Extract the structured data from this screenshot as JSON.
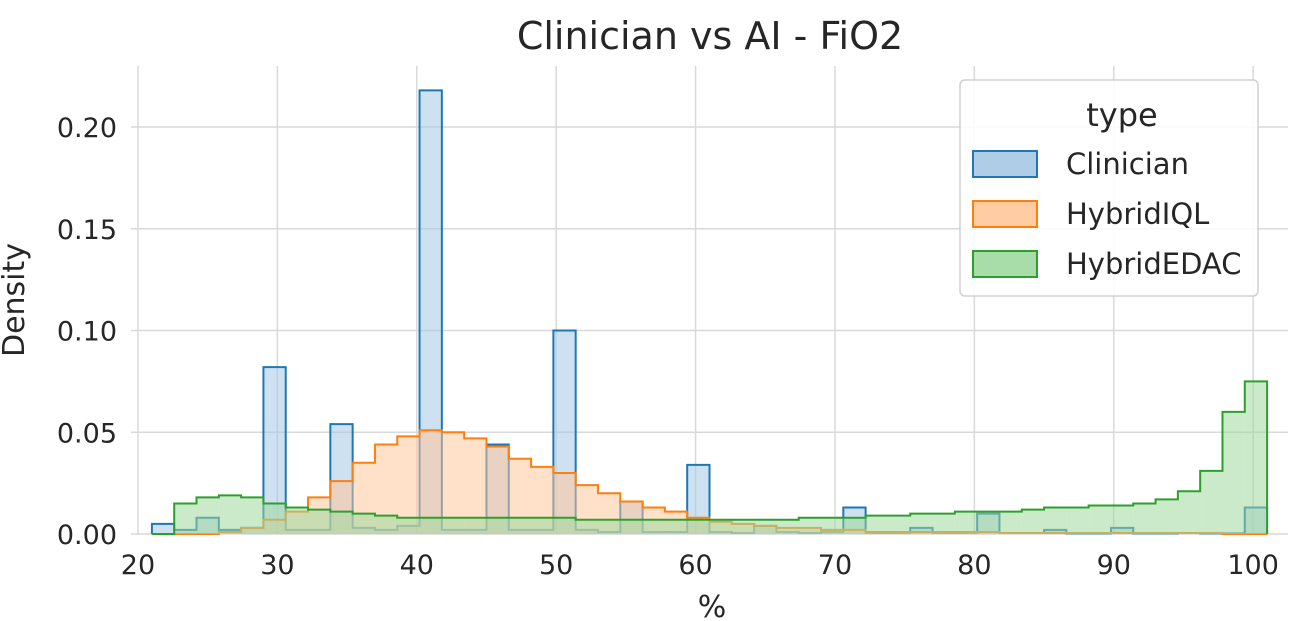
{
  "chart_data": {
    "type": "histogram",
    "title": "Clinician vs AI - FiO2",
    "xlabel": "%",
    "ylabel": "Density",
    "xlim": [
      19.5,
      102.5
    ],
    "ylim": [
      0,
      0.23
    ],
    "x_ticks": [
      20,
      30,
      40,
      50,
      60,
      70,
      80,
      90,
      100
    ],
    "x_tick_labels": [
      "20",
      "30",
      "40",
      "50",
      "60",
      "70",
      "80",
      "90",
      "100"
    ],
    "y_ticks": [
      0.0,
      0.05,
      0.1,
      0.15,
      0.2
    ],
    "y_tick_labels": [
      "0.00",
      "0.05",
      "0.10",
      "0.15",
      "0.20"
    ],
    "grid": true,
    "legend": {
      "title": "type",
      "position": "top-right"
    },
    "bin_edges": [
      21.0,
      22.6,
      24.2,
      25.8,
      27.4,
      29.0,
      30.6,
      32.2,
      33.8,
      35.4,
      37.0,
      38.6,
      40.2,
      41.8,
      43.4,
      45.0,
      46.6,
      48.2,
      49.8,
      51.4,
      53.0,
      54.6,
      56.2,
      57.8,
      59.4,
      61.0,
      62.6,
      64.2,
      65.8,
      67.4,
      69.0,
      70.6,
      72.2,
      73.8,
      75.4,
      77.0,
      78.6,
      80.2,
      81.8,
      83.4,
      85.0,
      86.6,
      88.2,
      89.8,
      91.4,
      93.0,
      94.6,
      96.2,
      97.8,
      99.4,
      101.0
    ],
    "series": [
      {
        "name": "Clinician",
        "color": "#1f77b4",
        "fill": "#a6c8e3",
        "values": [
          0.005,
          0.002,
          0.008,
          0.002,
          0.003,
          0.082,
          0.002,
          0.002,
          0.054,
          0.003,
          0.002,
          0.004,
          0.218,
          0.002,
          0.002,
          0.044,
          0.002,
          0.002,
          0.1,
          0.002,
          0.001,
          0.016,
          0.001,
          0.001,
          0.034,
          0.001,
          0.0005,
          0.004,
          0.001,
          0.0005,
          0.001,
          0.013,
          0.0005,
          0.0005,
          0.003,
          0.0005,
          0.0005,
          0.01,
          0.0005,
          0.0005,
          0.002,
          0.0003,
          0.0003,
          0.003,
          0.0003,
          0.0003,
          0.0005,
          0.0003,
          0.0003,
          0.013
        ]
      },
      {
        "name": "HybridIQL",
        "color": "#ff7f0e",
        "fill": "#ffc79a",
        "values": [
          0.0,
          0.0,
          0.0,
          0.001,
          0.003,
          0.007,
          0.011,
          0.018,
          0.026,
          0.035,
          0.044,
          0.048,
          0.051,
          0.05,
          0.047,
          0.043,
          0.037,
          0.033,
          0.03,
          0.024,
          0.02,
          0.016,
          0.013,
          0.011,
          0.008,
          0.006,
          0.005,
          0.004,
          0.003,
          0.003,
          0.002,
          0.002,
          0.001,
          0.001,
          0.001,
          0.001,
          0.001,
          0.001,
          0.0005,
          0.0005,
          0.0005,
          0.0005,
          0.0005,
          0.0005,
          0.0005,
          0.0005,
          0.0005,
          0.0005,
          0.0,
          0.0
        ]
      },
      {
        "name": "HybridEDAC",
        "color": "#2ca02c",
        "fill": "#9fd89f",
        "values": [
          0.0,
          0.015,
          0.018,
          0.019,
          0.018,
          0.015,
          0.013,
          0.012,
          0.011,
          0.01,
          0.009,
          0.008,
          0.008,
          0.008,
          0.008,
          0.008,
          0.008,
          0.008,
          0.008,
          0.007,
          0.007,
          0.007,
          0.007,
          0.007,
          0.007,
          0.007,
          0.007,
          0.007,
          0.007,
          0.008,
          0.008,
          0.008,
          0.009,
          0.009,
          0.01,
          0.01,
          0.011,
          0.011,
          0.011,
          0.012,
          0.013,
          0.013,
          0.014,
          0.014,
          0.015,
          0.017,
          0.021,
          0.031,
          0.06,
          0.075
        ]
      }
    ]
  }
}
